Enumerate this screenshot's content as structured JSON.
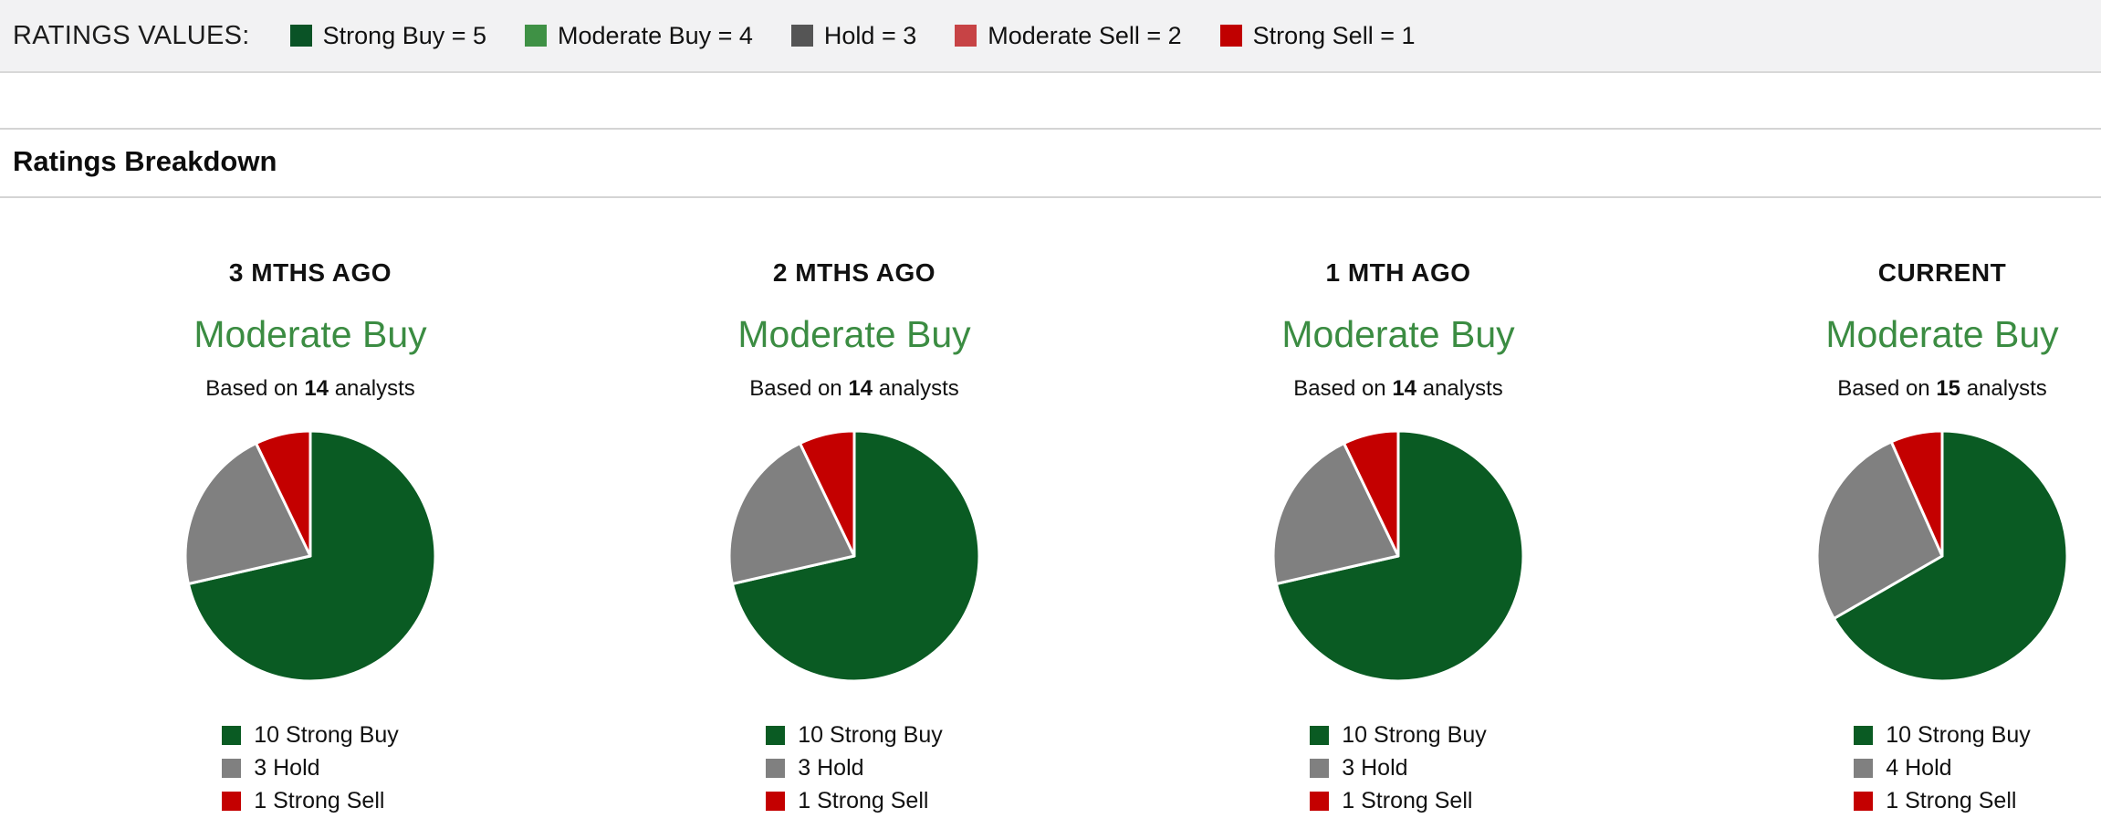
{
  "ratings_values_bar": {
    "label": "RATINGS VALUES:",
    "legend": [
      {
        "name": "strong-buy",
        "label": "Strong Buy = 5",
        "color": "#0a5326"
      },
      {
        "name": "moderate-buy",
        "label": "Moderate Buy = 4",
        "color": "#3f9145"
      },
      {
        "name": "hold",
        "label": "Hold = 3",
        "color": "#555555"
      },
      {
        "name": "moderate-sell",
        "label": "Moderate Sell = 2",
        "color": "#c74345"
      },
      {
        "name": "strong-sell",
        "label": "Strong Sell = 1",
        "color": "#c00000"
      }
    ]
  },
  "section": {
    "title": "Ratings Breakdown"
  },
  "analysts_text": {
    "prefix": "Based on",
    "suffix": "analysts"
  },
  "styles": {
    "consensus_color": "#3b8c42",
    "pie_border_color": "#ffffff"
  },
  "chart_data": [
    {
      "type": "pie",
      "period": "3 MTHS AGO",
      "consensus": "Moderate Buy",
      "analysts": 14,
      "slices": [
        {
          "label": "Strong Buy",
          "count": 10,
          "color": "#0a5b23"
        },
        {
          "label": "Hold",
          "count": 3,
          "color": "#808080"
        },
        {
          "label": "Strong Sell",
          "count": 1,
          "color": "#c40000"
        }
      ]
    },
    {
      "type": "pie",
      "period": "2 MTHS AGO",
      "consensus": "Moderate Buy",
      "analysts": 14,
      "slices": [
        {
          "label": "Strong Buy",
          "count": 10,
          "color": "#0a5b23"
        },
        {
          "label": "Hold",
          "count": 3,
          "color": "#808080"
        },
        {
          "label": "Strong Sell",
          "count": 1,
          "color": "#c40000"
        }
      ]
    },
    {
      "type": "pie",
      "period": "1 MTH AGO",
      "consensus": "Moderate Buy",
      "analysts": 14,
      "slices": [
        {
          "label": "Strong Buy",
          "count": 10,
          "color": "#0a5b23"
        },
        {
          "label": "Hold",
          "count": 3,
          "color": "#808080"
        },
        {
          "label": "Strong Sell",
          "count": 1,
          "color": "#c40000"
        }
      ]
    },
    {
      "type": "pie",
      "period": "CURRENT",
      "consensus": "Moderate Buy",
      "analysts": 15,
      "slices": [
        {
          "label": "Strong Buy",
          "count": 10,
          "color": "#0a5b23"
        },
        {
          "label": "Hold",
          "count": 4,
          "color": "#808080"
        },
        {
          "label": "Strong Sell",
          "count": 1,
          "color": "#c40000"
        }
      ]
    }
  ]
}
